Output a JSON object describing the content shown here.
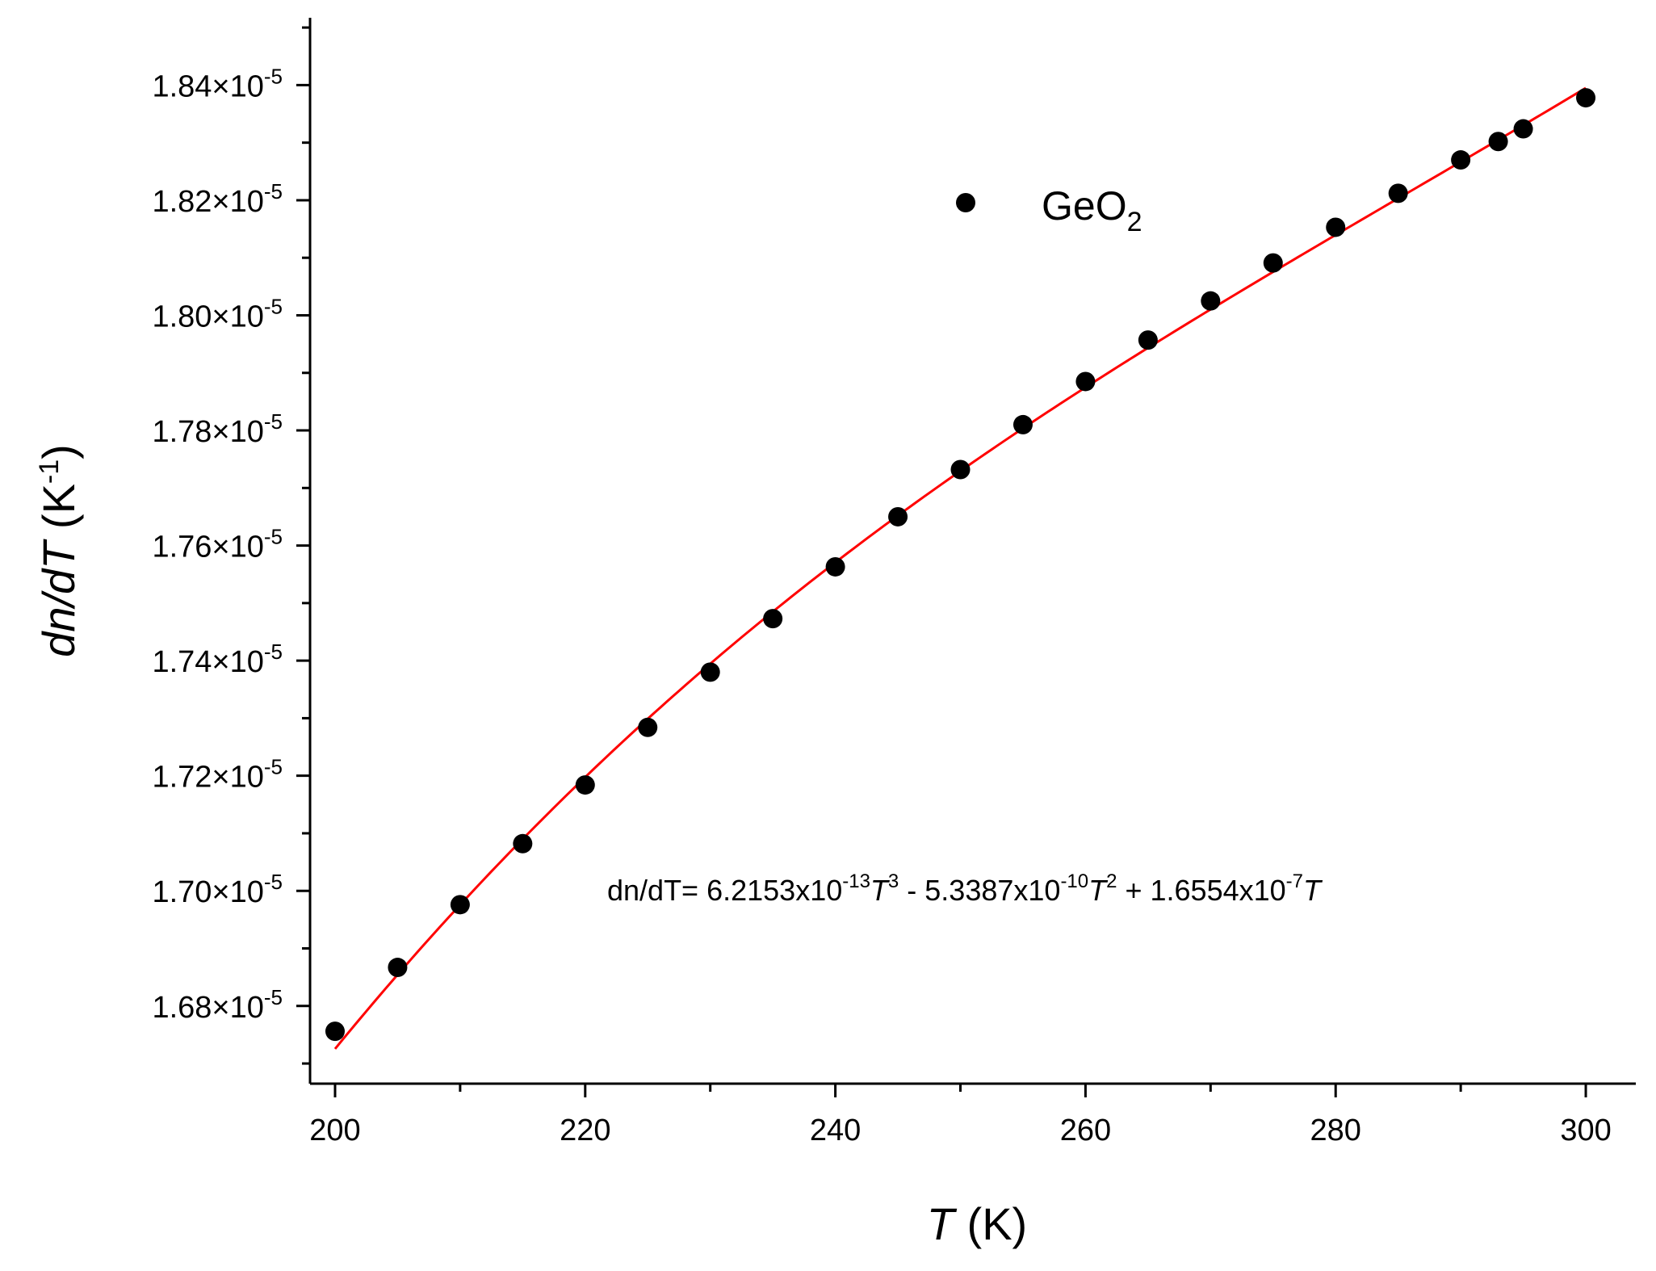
{
  "chart_data": {
    "type": "scatter",
    "x_axis": {
      "label_italic": "T",
      "label_rest": " (K)",
      "range": [
        198,
        304
      ],
      "major_ticks": [
        200,
        220,
        240,
        260,
        280,
        300
      ],
      "minor_ticks": [
        210,
        230,
        250,
        270,
        290
      ]
    },
    "y_axis": {
      "label_italic": "dn/dT",
      "label_rest": " (K",
      "label_sup": "-1",
      "label_close": ")",
      "range": [
        1.6665e-05,
        1.8517e-05
      ],
      "major_ticks": [
        1.68e-05,
        1.7e-05,
        1.72e-05,
        1.74e-05,
        1.76e-05,
        1.78e-05,
        1.8e-05,
        1.82e-05,
        1.84e-05
      ],
      "tick_mantissas": [
        "1.68",
        "1.70",
        "1.72",
        "1.74",
        "1.76",
        "1.78",
        "1.80",
        "1.82",
        "1.84"
      ],
      "tick_suffix": "×10",
      "tick_exponent": "-5"
    },
    "series": [
      {
        "name": "GeO2",
        "type": "scatter",
        "color": "#000000",
        "x": [
          200,
          205,
          210,
          215,
          220,
          225,
          230,
          235,
          240,
          245,
          250,
          255,
          260,
          265,
          270,
          275,
          280,
          285,
          290,
          293,
          295,
          300
        ],
        "y": [
          1.6756e-05,
          1.6867e-05,
          1.6976e-05,
          1.7082e-05,
          1.7184e-05,
          1.7284e-05,
          1.738e-05,
          1.7473e-05,
          1.7563e-05,
          1.765e-05,
          1.7732e-05,
          1.781e-05,
          1.7885e-05,
          1.7957e-05,
          1.8025e-05,
          1.8091e-05,
          1.8153e-05,
          1.8212e-05,
          1.827e-05,
          1.8302e-05,
          1.8324e-05,
          1.8378e-05
        ]
      },
      {
        "type": "line",
        "color": "#ff0000",
        "fit_coefficients": {
          "a3": 6.2153e-13,
          "a2": -5.3387e-10,
          "a1": 1.6554e-07
        },
        "x_range": [
          200,
          300
        ]
      }
    ],
    "legend": {
      "placement": "top-center",
      "label_main": "GeO",
      "label_sub": "2"
    },
    "annotation": {
      "prefix": "dn/dT= 6.2153x10",
      "e1": "-13",
      "v1": "T",
      "p1": "3",
      "mid1": " - 5.3387x10",
      "e2": "-10",
      "v2": "T",
      "p2": "2",
      "mid2": " + 1.6554x10",
      "e3": "-7",
      "v3": "T"
    },
    "grid": false
  }
}
